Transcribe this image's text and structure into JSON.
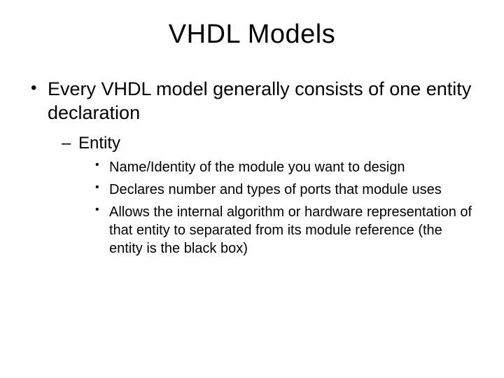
{
  "background_color": "#ffffff",
  "text_color": "#000000",
  "font_family": "Arial",
  "title": {
    "text": "VHDL Models",
    "fontsize": 38,
    "align": "center"
  },
  "bullets": {
    "l1_0": "Every VHDL model generally consists of one entity declaration",
    "l2_0": "Entity",
    "l3_0": "Name/Identity of the module you want to design",
    "l3_1": "Declares number and types of ports that module uses",
    "l3_2": "Allows the internal algorithm or hardware representation of that entity to separated from its module reference (the entity is the black box)"
  }
}
